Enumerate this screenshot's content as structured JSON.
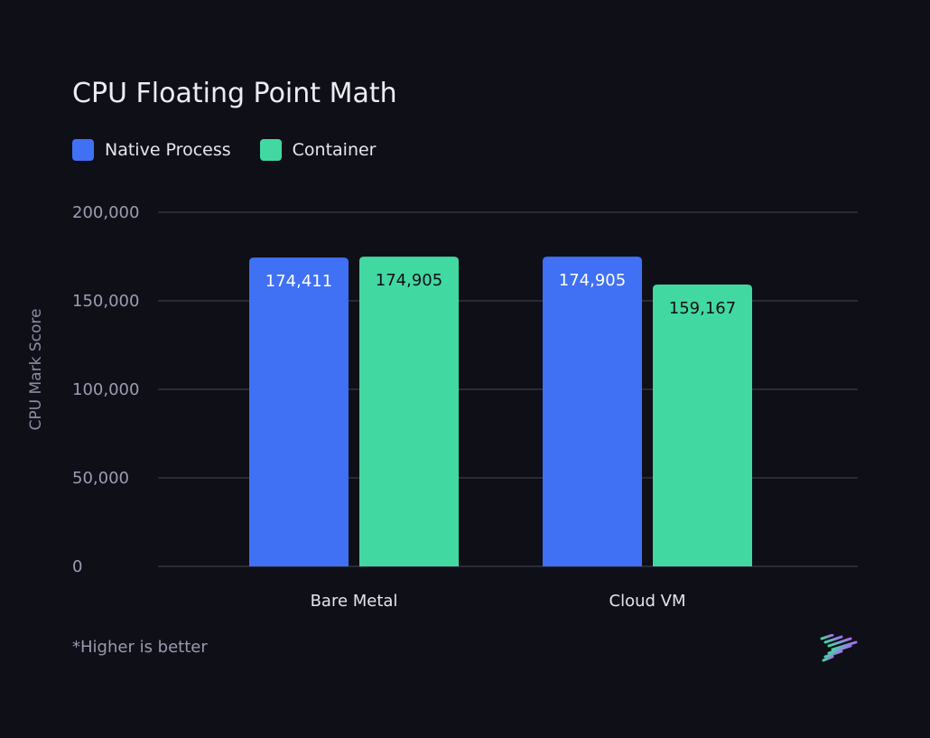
{
  "chart_data": {
    "type": "bar",
    "title": "CPU Floating Point Math",
    "ylabel": "CPU Mark Score",
    "xlabel": "",
    "categories": [
      "Bare Metal",
      "Cloud VM"
    ],
    "series": [
      {
        "name": "Native Process",
        "color": "#4070f4",
        "label_color": "#ffffff",
        "values": [
          174411,
          174905
        ]
      },
      {
        "name": "Container",
        "color": "#41d9a1",
        "label_color": "#0f0f18",
        "values": [
          174905,
          159167
        ]
      }
    ],
    "ylim": [
      0,
      200000
    ],
    "yticks": [
      0,
      50000,
      100000,
      150000,
      200000
    ],
    "ytick_labels": [
      "0",
      "50,000",
      "100,000",
      "150,000",
      "200,000"
    ],
    "data_labels": [
      [
        "174,411",
        "174,905"
      ],
      [
        "174,905",
        "159,167"
      ]
    ],
    "grid": true,
    "legend_position": "top-left",
    "footnote": "*Higher is better"
  },
  "logo": {
    "icon": "striped-arrow-logo-icon",
    "color_a": "#41d9a1",
    "color_b": "#a86bf2"
  }
}
